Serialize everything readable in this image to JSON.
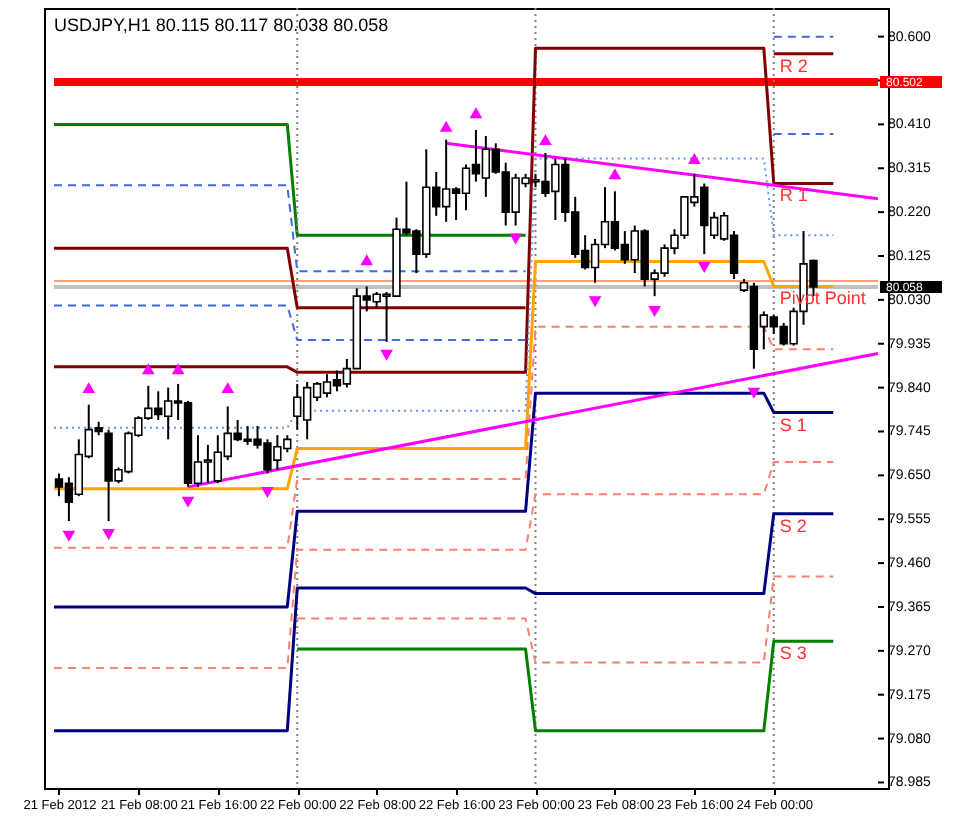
{
  "chart_data": {
    "type": "candlestick",
    "title": "USDJPY,H1 80.115 80.117 80.038 80.058",
    "x": [
      "2012-02-21T00:00",
      "2012-02-21T01:00",
      "2012-02-21T02:00",
      "2012-02-21T03:00",
      "2012-02-21T04:00",
      "2012-02-21T05:00",
      "2012-02-21T06:00",
      "2012-02-21T07:00",
      "2012-02-21T08:00",
      "2012-02-21T09:00",
      "2012-02-21T10:00",
      "2012-02-21T11:00",
      "2012-02-21T12:00",
      "2012-02-21T13:00",
      "2012-02-21T14:00",
      "2012-02-21T15:00",
      "2012-02-21T16:00",
      "2012-02-21T17:00",
      "2012-02-21T18:00",
      "2012-02-21T19:00",
      "2012-02-21T20:00",
      "2012-02-21T21:00",
      "2012-02-21T22:00",
      "2012-02-21T23:00",
      "2012-02-22T00:00",
      "2012-02-22T01:00",
      "2012-02-22T02:00",
      "2012-02-22T03:00",
      "2012-02-22T04:00",
      "2012-02-22T05:00",
      "2012-02-22T06:00",
      "2012-02-22T07:00",
      "2012-02-22T08:00",
      "2012-02-22T09:00",
      "2012-02-22T10:00",
      "2012-02-22T11:00",
      "2012-02-22T12:00",
      "2012-02-22T13:00",
      "2012-02-22T14:00",
      "2012-02-22T15:00",
      "2012-02-22T16:00",
      "2012-02-22T17:00",
      "2012-02-22T18:00",
      "2012-02-22T19:00",
      "2012-02-22T20:00",
      "2012-02-22T21:00",
      "2012-02-22T22:00",
      "2012-02-22T23:00",
      "2012-02-23T00:00",
      "2012-02-23T01:00",
      "2012-02-23T02:00",
      "2012-02-23T03:00",
      "2012-02-23T04:00",
      "2012-02-23T05:00",
      "2012-02-23T06:00",
      "2012-02-23T07:00",
      "2012-02-23T08:00",
      "2012-02-23T09:00",
      "2012-02-23T10:00",
      "2012-02-23T11:00",
      "2012-02-23T12:00",
      "2012-02-23T13:00",
      "2012-02-23T14:00",
      "2012-02-23T15:00",
      "2012-02-23T16:00",
      "2012-02-23T17:00",
      "2012-02-23T18:00",
      "2012-02-23T19:00",
      "2012-02-23T20:00",
      "2012-02-23T21:00",
      "2012-02-23T22:00",
      "2012-02-23T23:00",
      "2012-02-24T00:00",
      "2012-02-24T01:00",
      "2012-02-24T02:00",
      "2012-02-24T03:00",
      "2012-02-24T04:00"
    ],
    "ohlc": [
      [
        79.642,
        79.654,
        79.605,
        79.625
      ],
      [
        79.633,
        79.646,
        79.551,
        79.592
      ],
      [
        79.609,
        79.728,
        79.605,
        79.695
      ],
      [
        79.691,
        79.803,
        79.687,
        79.749
      ],
      [
        79.753,
        79.766,
        79.737,
        79.745
      ],
      [
        79.741,
        79.749,
        79.551,
        79.638
      ],
      [
        79.638,
        79.667,
        79.633,
        79.662
      ],
      [
        79.658,
        79.745,
        79.654,
        79.741
      ],
      [
        79.737,
        79.778,
        79.733,
        79.774
      ],
      [
        79.774,
        79.844,
        79.77,
        79.795
      ],
      [
        79.795,
        79.832,
        79.77,
        79.782
      ],
      [
        79.778,
        79.84,
        79.728,
        79.811
      ],
      [
        79.811,
        79.848,
        79.77,
        79.807
      ],
      [
        79.807,
        79.811,
        79.625,
        79.633
      ],
      [
        79.633,
        79.737,
        79.625,
        79.679
      ],
      [
        79.679,
        79.716,
        79.633,
        79.683
      ],
      [
        79.638,
        79.737,
        79.633,
        79.7
      ],
      [
        79.691,
        79.799,
        79.683,
        79.741
      ],
      [
        79.741,
        79.77,
        79.724,
        79.728
      ],
      [
        79.728,
        79.757,
        79.716,
        79.724
      ],
      [
        79.728,
        79.757,
        79.708,
        79.716
      ],
      [
        79.72,
        79.728,
        79.654,
        79.662
      ],
      [
        79.683,
        79.737,
        79.662,
        79.712
      ],
      [
        79.708,
        79.737,
        79.7,
        79.728
      ],
      [
        79.778,
        79.848,
        79.749,
        79.819
      ],
      [
        79.77,
        79.852,
        79.728,
        79.84
      ],
      [
        79.819,
        79.852,
        79.811,
        79.848
      ],
      [
        79.828,
        79.869,
        79.819,
        79.852
      ],
      [
        79.857,
        79.877,
        79.832,
        79.844
      ],
      [
        79.848,
        79.902,
        79.84,
        79.881
      ],
      [
        79.881,
        80.055,
        79.881,
        80.038
      ],
      [
        80.038,
        80.059,
        80.005,
        80.03
      ],
      [
        80.026,
        80.047,
        80.013,
        80.042
      ],
      [
        80.038,
        80.047,
        79.939,
        80.042
      ],
      [
        80.038,
        80.208,
        80.038,
        80.183
      ],
      [
        80.183,
        80.286,
        80.17,
        80.175
      ],
      [
        80.179,
        80.183,
        80.088,
        80.129
      ],
      [
        80.129,
        80.356,
        80.121,
        80.274
      ],
      [
        80.274,
        80.307,
        80.212,
        80.232
      ],
      [
        80.232,
        80.377,
        80.199,
        80.27
      ],
      [
        80.27,
        80.274,
        80.203,
        80.261
      ],
      [
        80.261,
        80.323,
        80.224,
        80.315
      ],
      [
        80.323,
        80.398,
        80.286,
        80.303
      ],
      [
        80.294,
        80.385,
        80.253,
        80.356
      ],
      [
        80.356,
        80.369,
        80.303,
        80.307
      ],
      [
        80.307,
        80.327,
        80.191,
        80.22
      ],
      [
        80.22,
        80.303,
        80.191,
        80.294
      ],
      [
        80.282,
        80.303,
        80.274,
        80.294
      ],
      [
        80.286,
        80.303,
        80.274,
        80.29
      ],
      [
        80.286,
        80.348,
        80.253,
        80.261
      ],
      [
        80.265,
        80.336,
        80.203,
        80.323
      ],
      [
        80.323,
        80.336,
        80.199,
        80.22
      ],
      [
        80.22,
        80.253,
        80.121,
        80.129
      ],
      [
        80.137,
        80.17,
        80.096,
        80.1
      ],
      [
        80.1,
        80.162,
        80.067,
        80.15
      ],
      [
        80.15,
        80.274,
        80.142,
        80.199
      ],
      [
        80.199,
        80.265,
        80.137,
        80.142
      ],
      [
        80.15,
        80.179,
        80.108,
        80.117
      ],
      [
        80.117,
        80.191,
        80.088,
        80.179
      ],
      [
        80.179,
        80.183,
        80.059,
        80.075
      ],
      [
        80.075,
        80.096,
        80.038,
        80.088
      ],
      [
        80.088,
        80.15,
        80.08,
        80.142
      ],
      [
        80.142,
        80.183,
        80.129,
        80.17
      ],
      [
        80.17,
        80.253,
        80.162,
        80.253
      ],
      [
        80.241,
        80.303,
        80.232,
        80.253
      ],
      [
        80.274,
        80.282,
        80.129,
        80.191
      ],
      [
        80.17,
        80.22,
        80.162,
        80.208
      ],
      [
        80.162,
        80.22,
        80.158,
        80.212
      ],
      [
        80.17,
        80.179,
        80.075,
        80.088
      ],
      [
        80.051,
        80.075,
        80.047,
        80.067
      ],
      [
        80.059,
        80.067,
        79.881,
        79.923
      ],
      [
        79.972,
        80.005,
        79.923,
        79.997
      ],
      [
        79.993,
        79.997,
        79.956,
        79.972
      ],
      [
        79.972,
        79.98,
        79.931,
        79.935
      ],
      [
        79.935,
        80.013,
        79.931,
        80.005
      ],
      [
        80.005,
        80.179,
        79.976,
        80.108
      ],
      [
        80.115,
        80.117,
        80.038,
        80.058
      ]
    ],
    "series": [
      {
        "type": "line",
        "color": "#008000",
        "x": [
          "2012-02-20T23:30",
          "2012-02-21T23:00",
          "2012-02-22T00:00",
          "2012-02-22T23:00"
        ],
        "values": [
          80.41,
          80.41,
          80.17,
          80.17
        ]
      },
      {
        "type": "line",
        "name": "R 2",
        "color": "#800000",
        "x": [
          "2012-02-20T23:30",
          "2012-02-21T23:00",
          "2012-02-22T00:00",
          "2012-02-22T23:00",
          "2012-02-23T00:00",
          "2012-02-23T23:00",
          "2012-02-24T00:00",
          "2012-02-24T06:00"
        ],
        "values": [
          80.142,
          80.142,
          80.013,
          80.013,
          null,
          null,
          80.563,
          80.563
        ]
      },
      {
        "type": "line",
        "name": "R 1",
        "color": "#800000",
        "x": [
          "2012-02-20T23:30",
          "2012-02-21T23:00",
          "2012-02-22T00:00",
          "2012-02-22T23:00",
          "2012-02-23T00:00",
          "2012-02-23T23:00",
          "2012-02-24T00:00",
          "2012-02-24T06:00"
        ],
        "values": [
          79.885,
          79.885,
          79.873,
          79.873,
          80.575,
          80.575,
          80.282,
          80.282
        ]
      },
      {
        "type": "line",
        "name": "Pivot Point",
        "color": "#ffa500",
        "x": [
          "2012-02-20T23:30",
          "2012-02-21T23:00",
          "2012-02-22T00:00",
          "2012-02-22T23:00",
          "2012-02-23T00:00",
          "2012-02-23T23:00",
          "2012-02-24T00:00",
          "2012-02-24T06:00"
        ],
        "values": [
          79.621,
          79.621,
          79.708,
          79.708,
          80.113,
          80.113,
          80.059,
          80.059
        ]
      },
      {
        "type": "line",
        "name": "S 1",
        "color": "#000080",
        "x": [
          "2012-02-20T23:30",
          "2012-02-21T23:00",
          "2012-02-22T00:00",
          "2012-02-22T23:00",
          "2012-02-23T00:00",
          "2012-02-23T23:00",
          "2012-02-24T00:00",
          "2012-02-24T06:00"
        ],
        "values": [
          79.365,
          79.365,
          79.572,
          79.572,
          79.828,
          79.828,
          79.786,
          79.786
        ]
      },
      {
        "type": "line",
        "name": "S 2",
        "color": "#000080",
        "x": [
          "2012-02-20T23:30",
          "2012-02-21T23:00",
          "2012-02-22T00:00",
          "2012-02-22T23:00",
          "2012-02-23T00:00",
          "2012-02-23T23:00",
          "2012-02-24T00:00",
          "2012-02-24T06:00"
        ],
        "values": [
          79.097,
          79.097,
          79.406,
          79.406,
          79.394,
          79.394,
          79.567,
          79.567
        ]
      },
      {
        "type": "line",
        "name": "S 3",
        "color": "#008000",
        "x": [
          "2012-02-22T00:00",
          "2012-02-22T23:00",
          "2012-02-23T00:00",
          "2012-02-23T23:00",
          "2012-02-24T00:00",
          "2012-02-24T06:00"
        ],
        "values": [
          79.274,
          79.274,
          79.097,
          79.097,
          79.291,
          79.291
        ]
      },
      {
        "type": "line",
        "color": "#4169e1",
        "line_style": "dashed",
        "x": [
          "2012-02-20T23:30",
          "2012-02-21T23:00",
          "2012-02-22T00:00",
          "2012-02-22T23:00",
          "2012-02-23T00:00",
          "2012-02-23T23:00",
          "2012-02-24T00:00",
          "2012-02-24T06:00"
        ],
        "values": [
          80.278,
          80.278,
          80.092,
          80.092,
          null,
          null,
          80.6,
          80.6
        ]
      },
      {
        "type": "line",
        "color": "#4169e1",
        "line_style": "dashed",
        "x": [
          "2012-02-20T23:30",
          "2012-02-21T23:00",
          "2012-02-22T00:00",
          "2012-02-22T23:00",
          "2012-02-23T00:00",
          "2012-02-23T23:00",
          "2012-02-24T00:00",
          "2012-02-24T06:00"
        ],
        "values": [
          80.018,
          80.018,
          79.943,
          79.943,
          null,
          null,
          80.389,
          80.389
        ]
      },
      {
        "type": "line",
        "color": "#6495ed",
        "line_style": "dotted",
        "x": [
          "2012-02-20T23:30",
          "2012-02-21T23:00",
          "2012-02-22T00:00",
          "2012-02-22T23:00",
          "2012-02-23T00:00",
          "2012-02-23T23:00",
          "2012-02-24T00:00",
          "2012-02-24T06:00"
        ],
        "values": [
          79.753,
          79.753,
          79.79,
          79.79,
          80.336,
          80.336,
          80.17,
          80.17
        ]
      },
      {
        "type": "line",
        "color": "#fa8072",
        "line_style": "dashed",
        "x": [
          "2012-02-20T23:30",
          "2012-02-21T23:00",
          "2012-02-22T00:00",
          "2012-02-22T23:00",
          "2012-02-23T00:00",
          "2012-02-23T23:00",
          "2012-02-24T00:00",
          "2012-02-24T06:00"
        ],
        "values": [
          79.493,
          79.493,
          79.642,
          79.642,
          79.972,
          79.972,
          79.923,
          79.923
        ]
      },
      {
        "type": "line",
        "color": "#fa8072",
        "line_style": "dashed",
        "x": [
          "2012-02-20T23:30",
          "2012-02-21T23:00",
          "2012-02-22T00:00",
          "2012-02-22T23:00",
          "2012-02-23T00:00",
          "2012-02-23T23:00",
          "2012-02-24T00:00",
          "2012-02-24T06:00"
        ],
        "values": [
          79.233,
          79.233,
          79.489,
          79.489,
          79.609,
          79.609,
          79.679,
          79.679
        ]
      },
      {
        "type": "line",
        "color": "#fa8072",
        "line_style": "dashed",
        "x": [
          "2012-02-22T00:00",
          "2012-02-22T23:00",
          "2012-02-23T00:00",
          "2012-02-23T23:00",
          "2012-02-24T00:00",
          "2012-02-24T06:00"
        ],
        "values": [
          79.34,
          79.34,
          79.245,
          79.245,
          79.431,
          79.431
        ]
      },
      {
        "type": "line",
        "color": "#ff00ff",
        "x": [
          "2012-02-22T15:00",
          "2012-02-24T10:30"
        ],
        "values": [
          80.369,
          80.249
        ]
      },
      {
        "type": "line",
        "color": "#ff00ff",
        "x": [
          "2012-02-21T13:00",
          "2012-02-24T10:30"
        ],
        "values": [
          79.625,
          79.914
        ]
      },
      {
        "type": "scatter",
        "color": "#ff00ff",
        "marker": "triangle",
        "x": [
          "2012-02-21T03:00",
          "2012-02-21T09:00",
          "2012-02-21T12:00",
          "2012-02-21T17:00",
          "2012-02-22T07:00",
          "2012-02-22T15:00",
          "2012-02-22T18:00",
          "2012-02-23T01:00",
          "2012-02-23T08:00",
          "2012-02-23T16:00"
        ],
        "values": [
          79.84,
          79.881,
          79.881,
          79.84,
          80.117,
          80.406,
          80.435,
          80.377,
          80.303,
          80.336
        ]
      },
      {
        "type": "scatter",
        "color": "#ff00ff",
        "marker": "triangle-down",
        "x": [
          "2012-02-21T01:00",
          "2012-02-21T05:00",
          "2012-02-21T13:00",
          "2012-02-21T21:00",
          "2012-02-22T09:00",
          "2012-02-22T22:00",
          "2012-02-23T06:00",
          "2012-02-23T12:00",
          "2012-02-23T17:00",
          "2012-02-23T22:00"
        ],
        "values": [
          79.518,
          79.522,
          79.592,
          79.613,
          79.91,
          80.162,
          80.026,
          80.005,
          80.1,
          79.828
        ]
      }
    ],
    "ref_lines": [
      {
        "axis": "y",
        "value": 80.071,
        "color": "#ffa07a"
      },
      {
        "axis": "y",
        "value": 80.058,
        "label": "80.058",
        "color": "#c0c0c0"
      },
      {
        "axis": "y",
        "value": 80.502,
        "label": "80.502",
        "color": "#ff0000"
      },
      {
        "axis": "x",
        "value": "2012-02-22T00:00",
        "color": "#808080",
        "line_style": "dotted"
      },
      {
        "axis": "x",
        "value": "2012-02-23T00:00",
        "color": "#808080",
        "line_style": "dotted"
      },
      {
        "axis": "x",
        "value": "2012-02-24T00:00",
        "color": "#808080",
        "line_style": "dotted"
      }
    ],
    "xlim": [
      "2012-02-20T23:30",
      "2012-02-24T10:30"
    ],
    "xticks": [
      {
        "value": "2012-02-21T00:00",
        "label": "21 Feb 2012"
      },
      {
        "value": "2012-02-21T08:00",
        "label": "21 Feb 08:00"
      },
      {
        "value": "2012-02-21T16:00",
        "label": "21 Feb 16:00"
      },
      {
        "value": "2012-02-22T00:00",
        "label": "22 Feb 00:00"
      },
      {
        "value": "2012-02-22T08:00",
        "label": "22 Feb 08:00"
      },
      {
        "value": "2012-02-22T16:00",
        "label": "22 Feb 16:00"
      },
      {
        "value": "2012-02-23T00:00",
        "label": "23 Feb 00:00"
      },
      {
        "value": "2012-02-23T08:00",
        "label": "23 Feb 08:00"
      },
      {
        "value": "2012-02-23T16:00",
        "label": "23 Feb 16:00"
      },
      {
        "value": "2012-02-24T00:00",
        "label": "24 Feb 00:00"
      }
    ],
    "ylim": [
      78.973,
      80.662
    ],
    "yticks": [
      {
        "value": 80.6,
        "label": "80.600"
      },
      {
        "value": 80.505,
        "label": null
      },
      {
        "value": 80.41,
        "label": "80.410"
      },
      {
        "value": 80.315,
        "label": "80.315"
      },
      {
        "value": 80.22,
        "label": "80.220"
      },
      {
        "value": 80.125,
        "label": "80.125"
      },
      {
        "value": 80.03,
        "label": "80.030"
      },
      {
        "value": 79.935,
        "label": "79.935"
      },
      {
        "value": 79.84,
        "label": "79.840"
      },
      {
        "value": 79.745,
        "label": "79.745"
      },
      {
        "value": 79.65,
        "label": "79.650"
      },
      {
        "value": 79.555,
        "label": "79.555"
      },
      {
        "value": 79.46,
        "label": "79.460"
      },
      {
        "value": 79.365,
        "label": "79.365"
      },
      {
        "value": 79.27,
        "label": "79.270"
      },
      {
        "value": 79.175,
        "label": "79.175"
      },
      {
        "value": 79.08,
        "label": "79.080"
      },
      {
        "value": 78.985,
        "label": "78.985"
      }
    ]
  }
}
